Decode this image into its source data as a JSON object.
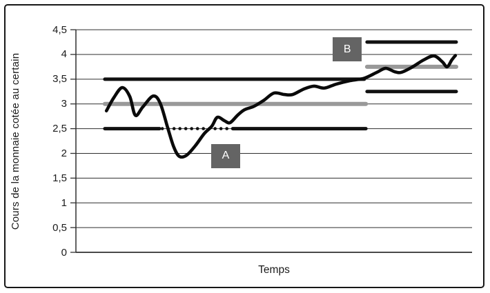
{
  "colors": {
    "curve": "#0a0a0a",
    "band_line": "#111111",
    "parity_line": "#999999",
    "grid_line": "#2e2e2e",
    "axis_line": "#2e2e2e",
    "frame_border": "#161616",
    "annotation_box_bg": "#646464",
    "annotation_box_text": "#ffffff"
  },
  "chart_data": {
    "type": "line",
    "title": "",
    "xlabel": "Temps",
    "ylabel": "Cours de la monnaie cotée au certain",
    "ylim": [
      0,
      4.5
    ],
    "ytick_step": 0.5,
    "grid": "horizontal",
    "x_axis_ticks": "none (time axis unlabeled)",
    "legend": "none",
    "yticks": [
      {
        "value": 0,
        "label": "0"
      },
      {
        "value": 0.5,
        "label": "0,5"
      },
      {
        "value": 1,
        "label": "1"
      },
      {
        "value": 1.5,
        "label": "1,5"
      },
      {
        "value": 2,
        "label": "2"
      },
      {
        "value": 2.5,
        "label": "2,5"
      },
      {
        "value": 3,
        "label": "3"
      },
      {
        "value": 3.5,
        "label": "3,5"
      },
      {
        "value": 4,
        "label": "4"
      },
      {
        "value": 4.5,
        "label": "4,5"
      }
    ],
    "series": [
      {
        "name": "exchange-rate-curve",
        "color": "#0a0a0a",
        "points": [
          [
            0.077,
            2.86
          ],
          [
            0.096,
            3.13
          ],
          [
            0.117,
            3.33
          ],
          [
            0.136,
            3.15
          ],
          [
            0.15,
            2.77
          ],
          [
            0.169,
            2.94
          ],
          [
            0.195,
            3.16
          ],
          [
            0.213,
            3.01
          ],
          [
            0.232,
            2.51
          ],
          [
            0.247,
            2.13
          ],
          [
            0.261,
            1.94
          ],
          [
            0.279,
            1.96
          ],
          [
            0.301,
            2.15
          ],
          [
            0.324,
            2.4
          ],
          [
            0.343,
            2.55
          ],
          [
            0.357,
            2.73
          ],
          [
            0.375,
            2.66
          ],
          [
            0.389,
            2.62
          ],
          [
            0.408,
            2.77
          ],
          [
            0.425,
            2.88
          ],
          [
            0.449,
            2.95
          ],
          [
            0.474,
            3.07
          ],
          [
            0.5,
            3.22
          ],
          [
            0.526,
            3.19
          ],
          [
            0.547,
            3.19
          ],
          [
            0.575,
            3.3
          ],
          [
            0.601,
            3.36
          ],
          [
            0.627,
            3.32
          ],
          [
            0.657,
            3.4
          ],
          [
            0.692,
            3.47
          ],
          [
            0.728,
            3.52
          ],
          [
            0.76,
            3.64
          ],
          [
            0.782,
            3.72
          ],
          [
            0.805,
            3.65
          ],
          [
            0.822,
            3.64
          ],
          [
            0.85,
            3.75
          ],
          [
            0.878,
            3.89
          ],
          [
            0.904,
            3.97
          ],
          [
            0.925,
            3.85
          ],
          [
            0.937,
            3.75
          ],
          [
            0.949,
            3.89
          ],
          [
            0.958,
            3.98
          ]
        ]
      }
    ],
    "reference_lines": [
      {
        "name": "upper-band-left",
        "value": 3.5,
        "t_start": 0.073,
        "t_end": 0.728,
        "color": "#111111",
        "style": "solid",
        "width": 5
      },
      {
        "name": "central-parity-left",
        "value": 3.0,
        "t_start": 0.073,
        "t_end": 0.732,
        "color": "#999999",
        "style": "solid",
        "width": 6
      },
      {
        "name": "lower-band-left-solid-1",
        "value": 2.5,
        "t_start": 0.073,
        "t_end": 0.211,
        "color": "#111111",
        "style": "solid",
        "width": 5
      },
      {
        "name": "lower-band-left-dotted",
        "value": 2.5,
        "t_start": 0.218,
        "t_end": 0.392,
        "color": "#111111",
        "style": "dotted",
        "width": 4.6
      },
      {
        "name": "lower-band-left-solid-2",
        "value": 2.5,
        "t_start": 0.396,
        "t_end": 0.732,
        "color": "#111111",
        "style": "solid",
        "width": 5
      },
      {
        "name": "upper-band-right",
        "value": 4.25,
        "t_start": 0.735,
        "t_end": 0.96,
        "color": "#111111",
        "style": "solid",
        "width": 5
      },
      {
        "name": "central-parity-right",
        "value": 3.75,
        "t_start": 0.735,
        "t_end": 0.96,
        "color": "#999999",
        "style": "solid",
        "width": 6
      },
      {
        "name": "lower-band-right",
        "value": 3.25,
        "t_start": 0.735,
        "t_end": 0.96,
        "color": "#111111",
        "style": "solid",
        "width": 5
      }
    ],
    "annotations": [
      {
        "label": "A",
        "t": 0.378,
        "value": 1.95
      },
      {
        "label": "B",
        "t": 0.685,
        "value": 4.1
      }
    ]
  }
}
